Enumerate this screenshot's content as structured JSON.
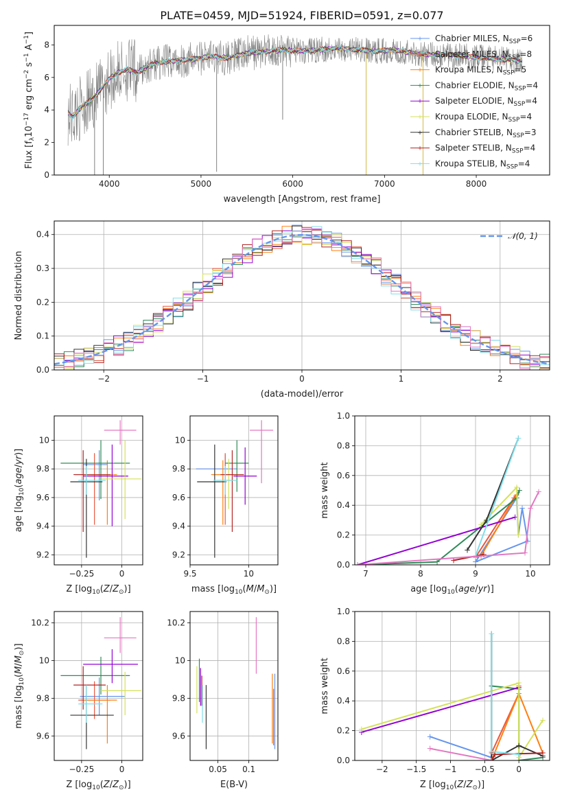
{
  "figure": {
    "title": "PLATE=0459, MJD=51924, FIBERID=0591, z=0.077"
  },
  "chart_data": [
    {
      "id": "spectrum",
      "type": "line",
      "xlabel": "wavelength [Angstrom, rest frame]",
      "ylabel": "Flux [f_λ 10^-17 erg cm^-2 s^-1 A^-1]",
      "xlim": [
        3400,
        8800
      ],
      "ylim": [
        0,
        9.2
      ],
      "xticks": [
        4000,
        5000,
        6000,
        7000,
        8000
      ],
      "yticks": [
        0,
        2,
        4,
        6,
        8
      ],
      "grid": false,
      "legend_position": "right",
      "data_continuum": {
        "x": [
          3550,
          3600,
          3700,
          3800,
          3900,
          4000,
          4100,
          4200,
          4300,
          4500,
          4700,
          4900,
          5100,
          5300,
          5500,
          5700,
          5900,
          6100,
          6300,
          6500,
          6700,
          6900,
          7100,
          7300,
          7500,
          7700,
          7900,
          8100,
          8300,
          8500
        ],
        "y": [
          3.8,
          3.6,
          4.2,
          4.6,
          5.2,
          5.9,
          6.3,
          6.5,
          6.3,
          6.9,
          7.0,
          7.1,
          7.3,
          7.2,
          7.5,
          7.6,
          7.7,
          7.6,
          7.7,
          7.8,
          7.7,
          7.6,
          7.7,
          7.5,
          7.4,
          7.4,
          7.3,
          7.2,
          7.1,
          7.0
        ]
      },
      "model_colors": [
        "#6495ed",
        "#e9573f",
        "#ff7f0e",
        "#2e8b57",
        "#9400d3",
        "#d4e157",
        "#333333",
        "#b22222",
        "#80deea"
      ],
      "legend": [
        {
          "label": "Chabrier MILES, N",
          "sub": "SSP",
          "n": "=6",
          "color": "#6495ed"
        },
        {
          "label": "Salpeter MILES, N",
          "sub": "SSP",
          "n": "=8",
          "color": "#e9573f"
        },
        {
          "label": "Kroupa MILES, N",
          "sub": "SSP",
          "n": "=5",
          "color": "#ff7f0e"
        },
        {
          "label": "Chabrier ELODIE, N",
          "sub": "SSP",
          "n": "=4",
          "color": "#2e8b57"
        },
        {
          "label": "Salpeter ELODIE, N",
          "sub": "SSP",
          "n": "=4",
          "color": "#9400d3"
        },
        {
          "label": "Kroupa ELODIE, N",
          "sub": "SSP",
          "n": "=4",
          "color": "#d4e157"
        },
        {
          "label": "Chabrier STELIB, N",
          "sub": "SSP",
          "n": "=3",
          "color": "#333333"
        },
        {
          "label": "Salpeter STELIB, N",
          "sub": "SSP",
          "n": "=4",
          "color": "#b22222"
        },
        {
          "label": "Kroupa STELIB, N",
          "sub": "SSP",
          "n": "=4",
          "color": "#80deea"
        }
      ]
    },
    {
      "id": "residuals",
      "type": "line",
      "xlabel": "(data-model)/error",
      "ylabel": "Normed distribution",
      "xlim": [
        -2.5,
        2.5
      ],
      "ylim": [
        0,
        0.44
      ],
      "xticks": [
        -2,
        -1,
        0,
        1,
        2
      ],
      "yticks": [
        0.0,
        0.1,
        0.2,
        0.3,
        0.4
      ],
      "grid": true,
      "legend": [
        {
          "label": "𝒩(0, 1)",
          "color": "#6495ed",
          "style": "dashed"
        }
      ],
      "legend_position": "top-right",
      "normal": {
        "mu": 0,
        "sigma": 1
      }
    },
    {
      "id": "age-vs-Z",
      "type": "scatter",
      "xlabel": "Z [log10(Z/Z⊙)]",
      "ylabel": "age [log10(age/yr)]",
      "xlim": [
        -0.42,
        0.13
      ],
      "ylim": [
        9.13,
        10.17
      ],
      "xticks": [
        -0.25,
        0.0
      ],
      "yticks": [
        9.2,
        9.4,
        9.6,
        9.8,
        10.0
      ],
      "grid": true,
      "points": [
        {
          "x": -0.14,
          "y": 9.83,
          "xerr": [
            0.1,
            0.05
          ],
          "yerr": [
            0.25,
            0.1
          ],
          "color": "#6495ed"
        },
        {
          "x": -0.17,
          "y": 9.76,
          "xerr": [
            0.12,
            0.11
          ],
          "yerr": [
            0.35,
            0.15
          ],
          "color": "#e9573f"
        },
        {
          "x": -0.09,
          "y": 9.76,
          "xerr": [
            0.1,
            0.06
          ],
          "yerr": [
            0.35,
            0.1
          ],
          "color": "#ff7f0e"
        },
        {
          "x": -0.13,
          "y": 9.84,
          "xerr": [
            0.25,
            0.18
          ],
          "yerr": [
            0.25,
            0.16
          ],
          "color": "#2e8b57"
        },
        {
          "x": -0.06,
          "y": 9.75,
          "xerr": [
            0.18,
            0.1
          ],
          "yerr": [
            0.35,
            0.22
          ],
          "color": "#9400d3"
        },
        {
          "x": 0.02,
          "y": 9.73,
          "xerr": [
            0.15,
            0.1
          ],
          "yerr": [
            0.28,
            0.27
          ],
          "color": "#d4e157"
        },
        {
          "x": -0.22,
          "y": 9.71,
          "xerr": [
            0.1,
            0.1
          ],
          "yerr": [
            0.53,
            0.16
          ],
          "color": "#333333"
        },
        {
          "x": -0.24,
          "y": 9.76,
          "xerr": [
            0.06,
            0.17
          ],
          "yerr": [
            0.4,
            0.17
          ],
          "color": "#b22222"
        },
        {
          "x": -0.22,
          "y": 9.72,
          "xerr": [
            0.05,
            0.12
          ],
          "yerr": [
            0.1,
            0.1
          ],
          "color": "#80deea"
        },
        {
          "x": -0.01,
          "y": 10.07,
          "xerr": [
            0.1,
            0.1
          ],
          "yerr": [
            0.1,
            0.07
          ],
          "color": "#e377c2"
        }
      ]
    },
    {
      "id": "age-vs-mass",
      "type": "scatter",
      "xlabel": "mass [log10(M/M⊙)]",
      "ylabel": "",
      "xlim": [
        9.5,
        10.25
      ],
      "ylim": [
        9.13,
        10.17
      ],
      "xticks": [
        9.5,
        10.0
      ],
      "yticks": [
        9.2,
        9.4,
        9.6,
        9.8,
        10.0
      ],
      "grid": true,
      "points": [
        {
          "x": 9.8,
          "y": 9.8,
          "xerr": [
            0.25,
            0.1
          ],
          "yerr": [
            0.1,
            0.1
          ],
          "color": "#6495ed"
        },
        {
          "x": 9.8,
          "y": 9.76,
          "xerr": [
            0.1,
            0.1
          ],
          "yerr": [
            0.35,
            0.15
          ],
          "color": "#e9573f"
        },
        {
          "x": 9.78,
          "y": 9.76,
          "xerr": [
            0.1,
            0.1
          ],
          "yerr": [
            0.35,
            0.1
          ],
          "color": "#ff7f0e"
        },
        {
          "x": 9.9,
          "y": 9.84,
          "xerr": [
            0.1,
            0.1
          ],
          "yerr": [
            0.2,
            0.16
          ],
          "color": "#2e8b57"
        },
        {
          "x": 9.97,
          "y": 9.75,
          "xerr": [
            0.1,
            0.1
          ],
          "yerr": [
            0.2,
            0.2
          ],
          "color": "#9400d3"
        },
        {
          "x": 9.83,
          "y": 9.72,
          "xerr": [
            0.1,
            0.05
          ],
          "yerr": [
            0.2,
            0.15
          ],
          "color": "#d4e157"
        },
        {
          "x": 9.71,
          "y": 9.71,
          "xerr": [
            0.15,
            0.1
          ],
          "yerr": [
            0.53,
            0.26
          ],
          "color": "#333333"
        },
        {
          "x": 9.86,
          "y": 9.76,
          "xerr": [
            0.1,
            0.1
          ],
          "yerr": [
            0.4,
            0.17
          ],
          "color": "#b22222"
        },
        {
          "x": 9.8,
          "y": 9.72,
          "xerr": [
            0.1,
            0.1
          ],
          "yerr": [
            0.1,
            0.1
          ],
          "color": "#80deea"
        },
        {
          "x": 10.11,
          "y": 10.07,
          "xerr": [
            0.1,
            0.1
          ],
          "yerr": [
            0.37,
            0.07
          ],
          "color": "#e377c2"
        }
      ]
    },
    {
      "id": "massweight-vs-age",
      "type": "line",
      "xlabel": "age [log10(age/yr)]",
      "ylabel": "mass weight",
      "xlim": [
        6.8,
        10.35
      ],
      "ylim": [
        0,
        1.0
      ],
      "xticks": [
        7,
        8,
        9,
        10
      ],
      "yticks": [
        0.0,
        0.2,
        0.4,
        0.6,
        0.8,
        1.0
      ],
      "grid": true,
      "series": [
        {
          "color": "#6495ed",
          "x": [
            9.0,
            9.75,
            9.78,
            9.85,
            9.95,
            9.0
          ],
          "y": [
            0.02,
            0.45,
            0.2,
            0.38,
            0.16,
            0.02
          ]
        },
        {
          "color": "#e9573f",
          "x": [
            9.0,
            9.7,
            9.8
          ],
          "y": [
            0.05,
            0.45,
            0.5
          ]
        },
        {
          "color": "#ff7f0e",
          "x": [
            9.1,
            9.75
          ],
          "y": [
            0.06,
            0.47
          ]
        },
        {
          "color": "#2e8b57",
          "x": [
            6.85,
            8.3,
            9.75,
            9.8
          ],
          "y": [
            0.0,
            0.02,
            0.45,
            0.5
          ]
        },
        {
          "color": "#9400d3",
          "x": [
            6.85,
            9.72
          ],
          "y": [
            0.0,
            0.32
          ]
        },
        {
          "color": "#d4e157",
          "x": [
            9.1,
            9.75,
            9.78
          ],
          "y": [
            0.27,
            0.52,
            0.2
          ]
        },
        {
          "color": "#333333",
          "x": [
            8.85,
            9.2,
            9.78
          ],
          "y": [
            0.1,
            0.3,
            0.85
          ]
        },
        {
          "color": "#b22222",
          "x": [
            8.6,
            9.15
          ],
          "y": [
            0.03,
            0.07
          ]
        },
        {
          "color": "#80deea",
          "x": [
            9.0,
            9.78
          ],
          "y": [
            0.06,
            0.85
          ]
        },
        {
          "color": "#e377c2",
          "x": [
            6.85,
            9.9,
            10.0,
            10.15
          ],
          "y": [
            0.0,
            0.08,
            0.38,
            0.49
          ]
        }
      ]
    },
    {
      "id": "mass-vs-Z",
      "type": "scatter",
      "xlabel": "Z [log10(Z/Z⊙)]",
      "ylabel": "mass [log10(M/M⊙)]",
      "xlim": [
        -0.42,
        0.13
      ],
      "ylim": [
        9.47,
        10.26
      ],
      "xticks": [
        -0.25,
        0.0
      ],
      "yticks": [
        9.6,
        9.8,
        10.0,
        10.2
      ],
      "grid": true,
      "points": [
        {
          "x": -0.14,
          "y": 9.81,
          "xerr": [
            0.12,
            0.16
          ],
          "yerr": [
            0.1,
            0.1
          ],
          "color": "#6495ed"
        },
        {
          "x": -0.17,
          "y": 9.79,
          "xerr": [
            0.1,
            0.1
          ],
          "yerr": [
            0.1,
            0.1
          ],
          "color": "#e9573f"
        },
        {
          "x": -0.09,
          "y": 9.79,
          "xerr": [
            0.15,
            0.06
          ],
          "yerr": [
            0.23,
            0.08
          ],
          "color": "#ff7f0e"
        },
        {
          "x": -0.13,
          "y": 9.92,
          "xerr": [
            0.25,
            0.18
          ],
          "yerr": [
            0.1,
            0.1
          ],
          "color": "#2e8b57"
        },
        {
          "x": -0.06,
          "y": 9.98,
          "xerr": [
            0.18,
            0.16
          ],
          "yerr": [
            0.1,
            0.08
          ],
          "color": "#9400d3"
        },
        {
          "x": 0.02,
          "y": 9.84,
          "xerr": [
            0.15,
            0.1
          ],
          "yerr": [
            0.13,
            0.1
          ],
          "color": "#d4e157"
        },
        {
          "x": -0.22,
          "y": 9.71,
          "xerr": [
            0.1,
            0.17
          ],
          "yerr": [
            0.18,
            0.16
          ],
          "color": "#333333"
        },
        {
          "x": -0.24,
          "y": 9.87,
          "xerr": [
            0.06,
            0.14
          ],
          "yerr": [
            0.13,
            0.1
          ],
          "color": "#b22222"
        },
        {
          "x": -0.22,
          "y": 9.77,
          "xerr": [
            0.05,
            0.1
          ],
          "yerr": [
            0.1,
            0.1
          ],
          "color": "#80deea"
        },
        {
          "x": -0.01,
          "y": 10.12,
          "xerr": [
            0.1,
            0.1
          ],
          "yerr": [
            0.08,
            0.11
          ],
          "color": "#e377c2"
        }
      ]
    },
    {
      "id": "mass-vs-ebv",
      "type": "scatter",
      "xlabel": "E(B-V)",
      "ylabel": "",
      "xlim": [
        0.005,
        0.147
      ],
      "ylim": [
        9.47,
        10.26
      ],
      "xticks": [
        0.05,
        0.1
      ],
      "yticks": [
        9.6,
        9.8,
        10.0,
        10.2
      ],
      "grid": true,
      "points": [
        {
          "x": 0.142,
          "y": 9.73,
          "xerr": [
            0,
            0
          ],
          "yerr": [
            0.2,
            0.2
          ],
          "color": "#6495ed"
        },
        {
          "x": 0.14,
          "y": 9.7,
          "xerr": [
            0,
            0
          ],
          "yerr": [
            0.15,
            0.15
          ],
          "color": "#e9573f"
        },
        {
          "x": 0.138,
          "y": 9.74,
          "xerr": [
            0,
            0
          ],
          "yerr": [
            0.18,
            0.19
          ],
          "color": "#ff7f0e"
        },
        {
          "x": 0.02,
          "y": 9.91,
          "xerr": [
            0,
            0
          ],
          "yerr": [
            0.13,
            0.1
          ],
          "color": "#2e8b57"
        },
        {
          "x": 0.022,
          "y": 9.86,
          "xerr": [
            0,
            0
          ],
          "yerr": [
            0.1,
            0.1
          ],
          "color": "#9400d3"
        },
        {
          "x": 0.016,
          "y": 9.87,
          "xerr": [
            0,
            0
          ],
          "yerr": [
            0.15,
            0.1
          ],
          "color": "#d4e157"
        },
        {
          "x": 0.031,
          "y": 9.7,
          "xerr": [
            0,
            0
          ],
          "yerr": [
            0.17,
            0.17
          ],
          "color": "#333333"
        },
        {
          "x": 0.024,
          "y": 9.86,
          "xerr": [
            0,
            0
          ],
          "yerr": [
            0.1,
            0.06
          ],
          "color": "#b22222"
        },
        {
          "x": 0.025,
          "y": 9.77,
          "xerr": [
            0,
            0
          ],
          "yerr": [
            0.1,
            0.1
          ],
          "color": "#80deea"
        },
        {
          "x": 0.112,
          "y": 10.08,
          "xerr": [
            0,
            0
          ],
          "yerr": [
            0.15,
            0.15
          ],
          "color": "#e377c2"
        }
      ]
    },
    {
      "id": "massweight-vs-Z",
      "type": "line",
      "xlabel": "Z [log10(Z/Z⊙)]",
      "ylabel": "mass weight",
      "xlim": [
        -2.4,
        0.45
      ],
      "ylim": [
        0,
        1.0
      ],
      "xticks": [
        -2.0,
        -1.5,
        -1.0,
        -0.5,
        0.0
      ],
      "yticks": [
        0.0,
        0.2,
        0.4,
        0.6,
        0.8,
        1.0
      ],
      "grid": true,
      "series": [
        {
          "color": "#6495ed",
          "x": [
            -1.3,
            -0.4,
            -0.4
          ],
          "y": [
            0.16,
            0.02,
            0.05
          ]
        },
        {
          "color": "#e9573f",
          "x": [
            -0.4,
            0.0,
            0.0
          ],
          "y": [
            0.05,
            0.45,
            0.5
          ]
        },
        {
          "color": "#ff7f0e",
          "x": [
            -0.4,
            0.0,
            0.35
          ],
          "y": [
            0.0,
            0.45,
            0.05
          ]
        },
        {
          "color": "#2e8b57",
          "x": [
            -0.4,
            0.0,
            0.0,
            0.35
          ],
          "y": [
            0.5,
            0.48,
            0.0,
            0.02
          ]
        },
        {
          "color": "#9400d3",
          "x": [
            -2.3,
            0.0
          ],
          "y": [
            0.19,
            0.49
          ]
        },
        {
          "color": "#d4e157",
          "x": [
            -2.3,
            0.0,
            0.0,
            0.35
          ],
          "y": [
            0.21,
            0.52,
            0.02,
            0.27
          ]
        },
        {
          "color": "#333333",
          "x": [
            -0.4,
            -0.4,
            0.0,
            0.35
          ],
          "y": [
            0.85,
            0.0,
            0.1,
            0.03
          ]
        },
        {
          "color": "#b22222",
          "x": [
            -0.4,
            -0.35,
            0.35
          ],
          "y": [
            0.0,
            0.04,
            0.05
          ]
        },
        {
          "color": "#80deea",
          "x": [
            -0.4,
            -0.4,
            0.0
          ],
          "y": [
            0.85,
            0.06,
            0.04
          ]
        },
        {
          "color": "#e377c2",
          "x": [
            -1.3,
            -0.4
          ],
          "y": [
            0.08,
            0.0
          ]
        }
      ]
    }
  ]
}
